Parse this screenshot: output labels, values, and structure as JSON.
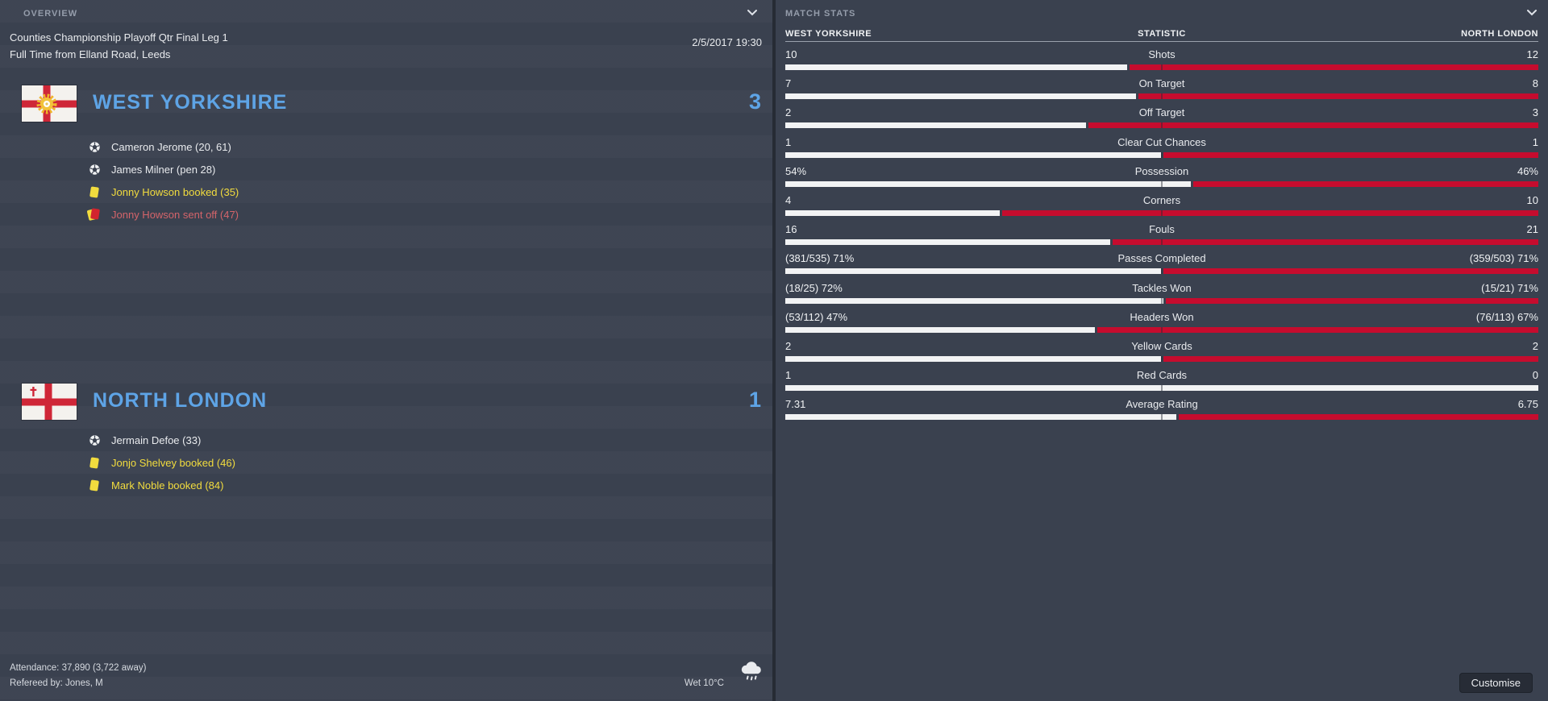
{
  "colors": {
    "accent_blue": "#5ea4e6",
    "card_yellow": "#f2dc3e",
    "sent_off_red": "#d4646a",
    "bar_red": "#c60c2e",
    "bar_white": "#f2f3f4",
    "panel_bg": "#3a414f"
  },
  "left_panel": {
    "header": "OVERVIEW",
    "competition": "Counties Championship Playoff Qtr Final Leg 1",
    "status_line": "Full Time from Elland Road, Leeds",
    "datetime": "2/5/2017 19:30",
    "home": {
      "name": "WEST YORKSHIRE",
      "score": "3",
      "badge_icon": "west-yorkshire-flag-icon",
      "events": [
        {
          "icon": "goal-icon",
          "type": "goal",
          "text": "Cameron Jerome (20, 61)"
        },
        {
          "icon": "goal-icon",
          "type": "goal",
          "text": "James Milner (pen 28)"
        },
        {
          "icon": "yellow-card-icon",
          "type": "booked",
          "text": "Jonny Howson booked (35)"
        },
        {
          "icon": "red-card-icon",
          "type": "sent-off",
          "text": "Jonny Howson sent off (47)"
        }
      ]
    },
    "away": {
      "name": "NORTH LONDON",
      "score": "1",
      "badge_icon": "north-london-flag-icon",
      "events": [
        {
          "icon": "goal-icon",
          "type": "goal",
          "text": "Jermain Defoe (33)"
        },
        {
          "icon": "yellow-card-icon",
          "type": "booked",
          "text": "Jonjo Shelvey booked (46)"
        },
        {
          "icon": "yellow-card-icon",
          "type": "booked",
          "text": "Mark Noble booked (84)"
        }
      ]
    },
    "attendance": "Attendance: 37,890 (3,722 away)",
    "referee": "Refereed by: Jones, M",
    "weather": "Wet 10°C",
    "weather_icon": "rain-cloud-icon"
  },
  "right_panel": {
    "header": "MATCH STATS",
    "columns": {
      "home": "WEST YORKSHIRE",
      "stat": "STATISTIC",
      "away": "NORTH LONDON"
    },
    "rows": [
      {
        "home": "10",
        "stat": "Shots",
        "away": "12",
        "home_val": 10,
        "away_val": 12
      },
      {
        "home": "7",
        "stat": "On Target",
        "away": "8",
        "home_val": 7,
        "away_val": 8
      },
      {
        "home": "2",
        "stat": "Off Target",
        "away": "3",
        "home_val": 2,
        "away_val": 3
      },
      {
        "home": "1",
        "stat": "Clear Cut Chances",
        "away": "1",
        "home_val": 1,
        "away_val": 1
      },
      {
        "home": "54%",
        "stat": "Possession",
        "away": "46%",
        "home_val": 54,
        "away_val": 46
      },
      {
        "home": "4",
        "stat": "Corners",
        "away": "10",
        "home_val": 4,
        "away_val": 10
      },
      {
        "home": "16",
        "stat": "Fouls",
        "away": "21",
        "home_val": 16,
        "away_val": 21
      },
      {
        "home": "(381/535) 71%",
        "stat": "Passes Completed",
        "away": "(359/503) 71%",
        "home_val": 71,
        "away_val": 71
      },
      {
        "home": "(18/25) 72%",
        "stat": "Tackles Won",
        "away": "(15/21) 71%",
        "home_val": 72,
        "away_val": 71
      },
      {
        "home": "(53/112) 47%",
        "stat": "Headers Won",
        "away": "(76/113) 67%",
        "home_val": 47,
        "away_val": 67
      },
      {
        "home": "2",
        "stat": "Yellow Cards",
        "away": "2",
        "home_val": 2,
        "away_val": 2
      },
      {
        "home": "1",
        "stat": "Red Cards",
        "away": "0",
        "home_val": 1,
        "away_val": 0
      },
      {
        "home": "7.31",
        "stat": "Average Rating",
        "away": "6.75",
        "home_val": 7.31,
        "away_val": 6.75
      }
    ],
    "customise_label": "Customise"
  }
}
